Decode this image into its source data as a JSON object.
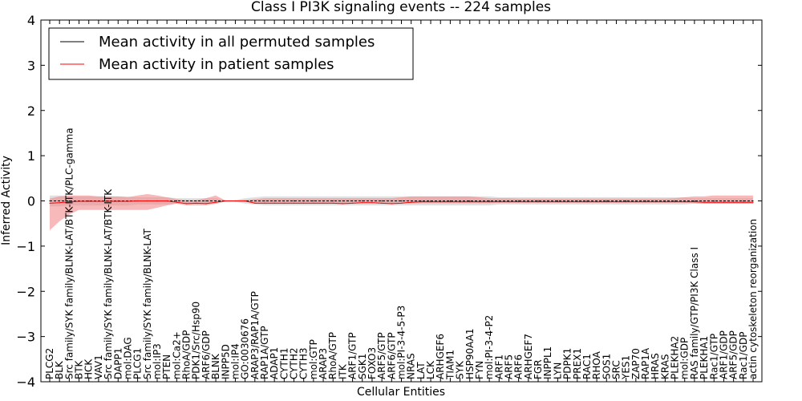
{
  "chart_data": {
    "type": "line",
    "title": "Class I PI3K signaling events -- 224 samples",
    "xlabel": "Cellular Entities",
    "ylabel": "Inferred Activity",
    "ylim": [
      -4,
      4
    ],
    "yticks": [
      4,
      3,
      2,
      1,
      0,
      -1,
      -2,
      -3,
      -4
    ],
    "ytick_labels": [
      "4",
      "3",
      "2",
      "1",
      "0",
      "−1",
      "−2",
      "−3",
      "−4"
    ],
    "legend_position": "top-left",
    "categories": [
      "PLCG2",
      "BLK",
      "Src family/SYK family/BLNK-LAT/BTK-ITK/PLC-gamma",
      "BTK",
      "HCK",
      "VAV1",
      "Src family/SYK family/BLNK-LAT/BTK-ITK",
      "DAPP1",
      "mol:DAG",
      "PLCG1",
      "Src family/SYK family/BLNK-LAT",
      "mol:IP3",
      "PTEN",
      "mol:Ca2+",
      "RhoA/GDP",
      "PDK1/Src/Hsp90",
      "ARF6/GDP",
      "BLNK",
      "INPP5D",
      "mol:IP4",
      "GO:0030676",
      "ARAP3/RAP1A/GTP",
      "RAP1A/GTP",
      "ADAP1",
      "CYTH1",
      "CYTH2",
      "CYTH3",
      "mol:GTP",
      "ARAP3",
      "RhoA/GTP",
      "ITK",
      "ARF1/GTP",
      "SGK1",
      "FOXO3",
      "ARF5/GTP",
      "ARF6/GTP",
      "mol:PI-3-4-5-P3",
      "NRAS",
      "LAT",
      "LCK",
      "ARHGEF6",
      "TIAM1",
      "SYK",
      "HSP90AA1",
      "FYN",
      "mol:PI-3-4-P2",
      "ARF1",
      "ARF5",
      "ARF6",
      "ARHGEF7",
      "FGR",
      "INPPL1",
      "LYN",
      "PDPK1",
      "PREX1",
      "RAC1",
      "RHOA",
      "SOS1",
      "SRC",
      "YES1",
      "ZAP70",
      "RAP1A",
      "HRAS",
      "KRAS",
      "PLEKHA2",
      "mol:GDP",
      "RAS family/GTP/PI3K Class I",
      "PLEKHA1",
      "Rac1/GTP",
      "ARF1/GDP",
      "ARF5/GDP",
      "Rac1/GDP",
      "actin cytoskeleton reorganization"
    ],
    "series": [
      {
        "name": "Mean activity in all permuted samples",
        "color": "#000000",
        "band_color": "#bbbbbb",
        "values": [
          0.0,
          0.0,
          0.0,
          0.0,
          0.0,
          0.0,
          0.0,
          0.0,
          0.0,
          0.0,
          0.0,
          0.0,
          0.0,
          0.0,
          0.0,
          0.0,
          0.0,
          0.0,
          0.0,
          0.0,
          0.0,
          0.0,
          0.0,
          0.0,
          0.0,
          0.0,
          0.0,
          0.0,
          0.0,
          0.0,
          0.0,
          0.0,
          0.0,
          0.0,
          0.0,
          0.0,
          0.0,
          0.0,
          0.0,
          0.0,
          0.0,
          0.0,
          0.0,
          0.0,
          0.0,
          0.0,
          0.0,
          0.0,
          0.0,
          0.0,
          0.0,
          0.0,
          0.0,
          0.0,
          0.0,
          0.0,
          0.0,
          0.0,
          0.0,
          0.0,
          0.0,
          0.0,
          0.0,
          0.0,
          0.0,
          0.0,
          0.0,
          0.0,
          0.0,
          0.0,
          0.0,
          0.0,
          0.0
        ],
        "lower": [
          -0.12,
          -0.12,
          -0.1,
          -0.1,
          -0.1,
          -0.1,
          -0.1,
          -0.1,
          -0.1,
          -0.08,
          -0.08,
          -0.08,
          -0.08,
          -0.06,
          -0.06,
          -0.06,
          -0.06,
          -0.06,
          -0.02,
          -0.02,
          -0.06,
          -0.08,
          -0.1,
          -0.1,
          -0.1,
          -0.1,
          -0.1,
          -0.1,
          -0.1,
          -0.1,
          -0.1,
          -0.1,
          -0.1,
          -0.1,
          -0.1,
          -0.1,
          -0.1,
          -0.1,
          -0.1,
          -0.1,
          -0.1,
          -0.1,
          -0.1,
          -0.1,
          -0.1,
          -0.1,
          -0.08,
          -0.08,
          -0.08,
          -0.08,
          -0.08,
          -0.08,
          -0.08,
          -0.08,
          -0.08,
          -0.08,
          -0.08,
          -0.08,
          -0.08,
          -0.08,
          -0.08,
          -0.08,
          -0.08,
          -0.08,
          -0.08,
          -0.08,
          -0.06,
          -0.06,
          -0.06,
          -0.06,
          -0.06,
          -0.06,
          -0.06
        ],
        "upper": [
          0.12,
          0.12,
          0.1,
          0.1,
          0.1,
          0.1,
          0.1,
          0.1,
          0.1,
          0.08,
          0.08,
          0.08,
          0.08,
          0.06,
          0.06,
          0.06,
          0.06,
          0.06,
          0.02,
          0.02,
          0.06,
          0.08,
          0.1,
          0.1,
          0.1,
          0.1,
          0.1,
          0.1,
          0.1,
          0.1,
          0.1,
          0.1,
          0.1,
          0.1,
          0.1,
          0.1,
          0.1,
          0.1,
          0.1,
          0.1,
          0.1,
          0.1,
          0.1,
          0.1,
          0.1,
          0.1,
          0.08,
          0.08,
          0.08,
          0.08,
          0.08,
          0.08,
          0.08,
          0.08,
          0.08,
          0.08,
          0.08,
          0.08,
          0.08,
          0.08,
          0.08,
          0.08,
          0.08,
          0.08,
          0.08,
          0.08,
          0.06,
          0.06,
          0.06,
          0.06,
          0.06,
          0.06,
          0.06
        ]
      },
      {
        "name": "Mean activity in patient samples",
        "color": "#ff0000",
        "band_color": "#f08080",
        "values": [
          -0.05,
          -0.04,
          -0.02,
          -0.01,
          -0.01,
          -0.01,
          -0.01,
          -0.01,
          -0.01,
          0.0,
          0.0,
          0.0,
          0.0,
          -0.03,
          -0.06,
          -0.05,
          -0.06,
          -0.03,
          0.0,
          0.0,
          0.0,
          -0.05,
          -0.05,
          -0.05,
          -0.05,
          -0.05,
          -0.05,
          -0.05,
          -0.05,
          -0.05,
          -0.06,
          -0.05,
          -0.04,
          -0.04,
          -0.05,
          -0.06,
          -0.05,
          -0.03,
          -0.02,
          -0.02,
          -0.02,
          -0.02,
          -0.02,
          -0.02,
          -0.02,
          -0.02,
          -0.02,
          -0.02,
          -0.02,
          -0.02,
          -0.02,
          -0.02,
          -0.02,
          -0.02,
          -0.02,
          -0.02,
          -0.02,
          -0.02,
          -0.02,
          -0.02,
          -0.02,
          -0.02,
          -0.02,
          -0.02,
          -0.02,
          -0.02,
          -0.02,
          -0.03,
          -0.03,
          -0.03,
          -0.03,
          -0.03,
          -0.03
        ],
        "lower": [
          -0.65,
          -0.45,
          -0.3,
          -0.2,
          -0.2,
          -0.2,
          -0.2,
          -0.2,
          -0.2,
          -0.2,
          -0.2,
          -0.15,
          -0.1,
          -0.06,
          -0.1,
          -0.1,
          -0.1,
          -0.06,
          -0.01,
          -0.01,
          -0.02,
          -0.05,
          -0.05,
          -0.05,
          -0.05,
          -0.05,
          -0.05,
          -0.05,
          -0.05,
          -0.05,
          -0.06,
          -0.05,
          -0.04,
          -0.04,
          -0.05,
          -0.06,
          -0.05,
          -0.05,
          -0.05,
          -0.05,
          -0.05,
          -0.05,
          -0.05,
          -0.05,
          -0.05,
          -0.05,
          -0.04,
          -0.04,
          -0.04,
          -0.04,
          -0.04,
          -0.04,
          -0.04,
          -0.04,
          -0.04,
          -0.04,
          -0.04,
          -0.04,
          -0.04,
          -0.04,
          -0.04,
          -0.04,
          -0.04,
          -0.04,
          -0.04,
          -0.04,
          -0.05,
          -0.06,
          -0.06,
          -0.06,
          -0.06,
          -0.06,
          -0.06
        ],
        "upper": [
          0.05,
          0.1,
          0.12,
          0.12,
          0.12,
          0.1,
          0.1,
          0.1,
          0.08,
          0.12,
          0.15,
          0.12,
          0.08,
          0.04,
          0.02,
          0.02,
          0.06,
          0.12,
          0.01,
          0.01,
          0.02,
          0.04,
          0.06,
          0.06,
          0.06,
          0.06,
          0.06,
          0.06,
          0.06,
          0.06,
          0.06,
          0.06,
          0.06,
          0.06,
          0.06,
          0.06,
          0.08,
          0.1,
          0.1,
          0.1,
          0.1,
          0.1,
          0.1,
          0.1,
          0.08,
          0.06,
          0.06,
          0.06,
          0.05,
          0.05,
          0.05,
          0.05,
          0.05,
          0.05,
          0.05,
          0.05,
          0.05,
          0.05,
          0.05,
          0.05,
          0.05,
          0.05,
          0.05,
          0.05,
          0.06,
          0.08,
          0.1,
          0.1,
          0.12,
          0.12,
          0.12,
          0.12,
          0.12
        ]
      }
    ]
  }
}
